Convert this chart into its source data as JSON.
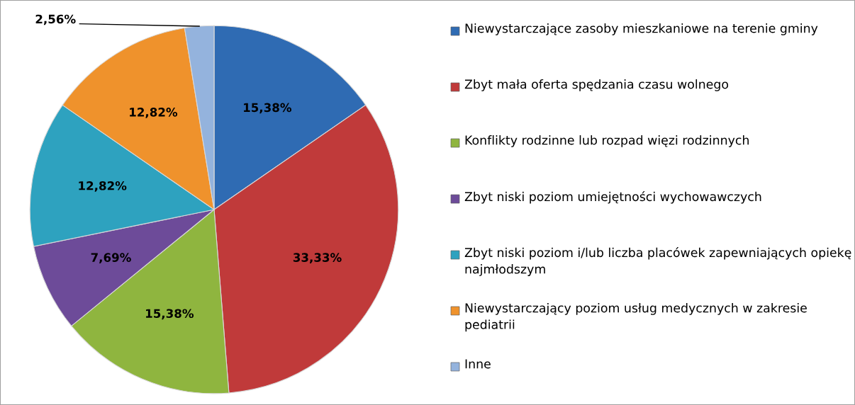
{
  "chart_data": {
    "type": "pie",
    "categories": [
      "Niewystarczające zasoby mieszkaniowe na terenie gminy",
      "Zbyt mała oferta spędzania czasu wolnego",
      "Konflikty rodzinne lub rozpad więzi rodzinnych",
      "Zbyt niski poziom umiejętności wychowawczych",
      "Zbyt niski poziom i/lub liczba placówek zapewniających opiekę najmłodszym",
      "Niewystarczający poziom usług medycznych w zakresie pediatrii",
      "Inne"
    ],
    "values": [
      15.38,
      33.33,
      15.38,
      7.69,
      12.82,
      12.82,
      2.56
    ],
    "value_labels": [
      "15,38%",
      "33,33%",
      "15,38%",
      "7,69%",
      "12,82%",
      "12,82%",
      "2,56%"
    ],
    "colors": [
      "#2f6bb3",
      "#c03a3a",
      "#8fb53f",
      "#6d4b99",
      "#2ea2bf",
      "#ef922c",
      "#94b3dd"
    ],
    "legend": "right"
  }
}
